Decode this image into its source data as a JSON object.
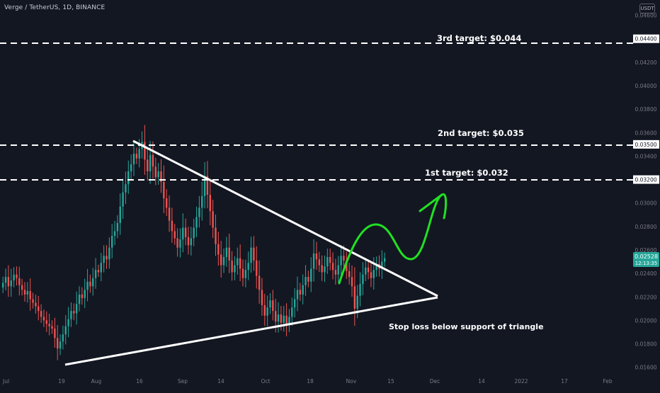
{
  "header": {
    "symbol_title": "Verge / TetherUS, 1D, BINANCE",
    "currency_button": "USDT"
  },
  "colors": {
    "background": "#131722",
    "up_candle": "#26a69a",
    "down_candle": "#ef5350",
    "axis_text": "#787b86",
    "annotation": "#ffffff",
    "projection": "#22e022",
    "price_badge": "#26a69a"
  },
  "price_axis": {
    "ticks": [
      "0.04600",
      "0.04400",
      "0.04200",
      "0.04000",
      "0.03800",
      "0.03600",
      "0.03500",
      "0.03400",
      "0.03200",
      "0.03000",
      "0.02800",
      "0.02600",
      "0.02400",
      "0.02200",
      "0.02000",
      "0.01800",
      "0.01600"
    ],
    "highlighted": [
      "0.04400",
      "0.03500",
      "0.03200"
    ],
    "last_price": "0.02528",
    "countdown": "12:13:35"
  },
  "time_axis": {
    "labels": [
      "Jul",
      "19",
      "Aug",
      "16",
      "Sep",
      "14",
      "Oct",
      "18",
      "Nov",
      "15",
      "Dec",
      "14",
      "2022",
      "17",
      "Feb"
    ]
  },
  "annotations": {
    "target_3": "3rd target: $0.044",
    "target_2": "2nd target: $0.035",
    "target_1": "1st target: $0.032",
    "stop_loss": "Stop loss below support of triangle"
  },
  "chart_data": {
    "type": "candlestick",
    "title": "Verge / TetherUS, 1D, BINANCE",
    "ylim": [
      0.0155,
      0.047
    ],
    "grid": false,
    "x_tick_labels": [
      "Jul",
      "19",
      "Aug",
      "16",
      "Sep",
      "14",
      "Oct",
      "18",
      "Nov",
      "15",
      "Dec",
      "14",
      "2022",
      "17",
      "Feb"
    ],
    "closes": [
      0.0232,
      0.0237,
      0.0229,
      0.0234,
      0.0239,
      0.0236,
      0.023,
      0.0226,
      0.0222,
      0.0225,
      0.0218,
      0.0215,
      0.0212,
      0.0208,
      0.0203,
      0.02,
      0.0197,
      0.0195,
      0.0193,
      0.0185,
      0.0176,
      0.0182,
      0.0188,
      0.0195,
      0.0201,
      0.0208,
      0.0206,
      0.0214,
      0.0222,
      0.0219,
      0.0226,
      0.0233,
      0.0229,
      0.0236,
      0.0243,
      0.0241,
      0.0249,
      0.0255,
      0.0252,
      0.0262,
      0.0272,
      0.0276,
      0.0283,
      0.0297,
      0.0309,
      0.0316,
      0.0327,
      0.0333,
      0.0342,
      0.0338,
      0.0346,
      0.0352,
      0.0337,
      0.0327,
      0.0341,
      0.0331,
      0.0322,
      0.0327,
      0.0318,
      0.0304,
      0.0296,
      0.0285,
      0.0276,
      0.027,
      0.0262,
      0.0269,
      0.0279,
      0.0271,
      0.0264,
      0.027,
      0.0279,
      0.0288,
      0.0296,
      0.0306,
      0.0323,
      0.0307,
      0.0293,
      0.0279,
      0.0265,
      0.0256,
      0.0247,
      0.0254,
      0.0262,
      0.0251,
      0.0241,
      0.0247,
      0.0253,
      0.0244,
      0.0236,
      0.0243,
      0.0249,
      0.0262,
      0.0251,
      0.0238,
      0.0226,
      0.0213,
      0.0204,
      0.0211,
      0.0217,
      0.0208,
      0.0199,
      0.0205,
      0.0198,
      0.0204,
      0.0196,
      0.0203,
      0.0211,
      0.0218,
      0.0226,
      0.0222,
      0.023,
      0.0237,
      0.0233,
      0.0244,
      0.0257,
      0.0252,
      0.0247,
      0.0241,
      0.0246,
      0.0254,
      0.0249,
      0.0243,
      0.0239,
      0.0247,
      0.0255,
      0.0251,
      0.0242,
      0.0237,
      0.0229,
      0.021,
      0.0221,
      0.0231,
      0.0239,
      0.0245,
      0.0241,
      0.0236,
      0.0243,
      0.0248,
      0.0244,
      0.025,
      0.0253
    ],
    "horizontal_levels": [
      {
        "label": "3rd target: $0.044",
        "value": 0.044
      },
      {
        "label": "2nd target: $0.035",
        "value": 0.035
      },
      {
        "label": "1st target: $0.032",
        "value": 0.032
      }
    ],
    "last_price": 0.02528
  }
}
